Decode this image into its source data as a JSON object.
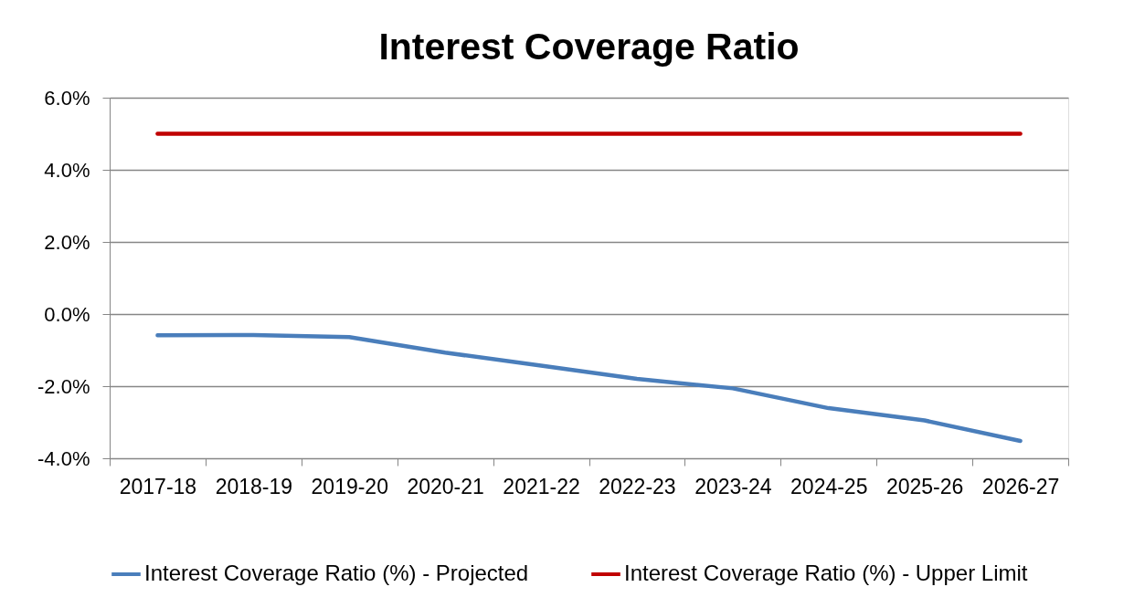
{
  "chart_data": {
    "type": "line",
    "title": "Interest Coverage Ratio",
    "categories": [
      "2017-18",
      "2018-19",
      "2019-20",
      "2020-21",
      "2021-22",
      "2022-23",
      "2023-24",
      "2024-25",
      "2025-26",
      "2026-27"
    ],
    "series": [
      {
        "name": "Interest Coverage Ratio (%) - Projected",
        "color": "#4a7ebb",
        "values": [
          -0.59,
          -0.58,
          -0.64,
          -1.07,
          -1.43,
          -1.8,
          -2.06,
          -2.61,
          -2.95,
          -3.52
        ]
      },
      {
        "name": "Interest Coverage Ratio (%) - Upper Limit",
        "color": "#c00000",
        "values": [
          5.0,
          5.0,
          5.0,
          5.0,
          5.0,
          5.0,
          5.0,
          5.0,
          5.0,
          5.0
        ]
      }
    ],
    "ylim": [
      -4,
      6
    ],
    "yticks": [
      {
        "value": -4,
        "label": "-4.0%"
      },
      {
        "value": -2,
        "label": "-2.0%"
      },
      {
        "value": 0,
        "label": "0.0%"
      },
      {
        "value": 2,
        "label": "2.0%"
      },
      {
        "value": 4,
        "label": "4.0%"
      },
      {
        "value": 6,
        "label": "6.0%"
      }
    ],
    "grid": "y",
    "legend": "bottom",
    "marker": "none",
    "line_style": "solid"
  }
}
